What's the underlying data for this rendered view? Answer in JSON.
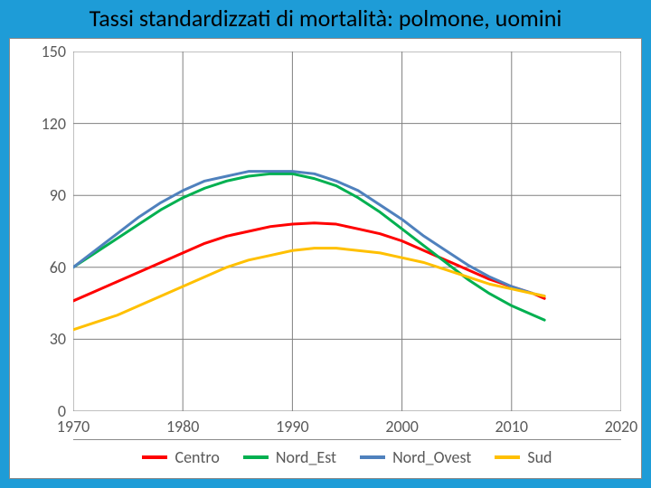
{
  "title": "Tassi standardizzati di mortalità: polmone, uomini",
  "chart": {
    "type": "line",
    "background_color": "#ffffff",
    "page_background_color": "#1e9cd7",
    "grid_color": "#808080",
    "axis_color": "#808080",
    "tick_label_color": "#595959",
    "tick_label_fontsize": 18,
    "title_fontsize": 26,
    "line_width": 3,
    "x": {
      "min": 1970,
      "max": 2020,
      "ticks": [
        1970,
        1980,
        1990,
        2000,
        2010,
        2020
      ]
    },
    "y": {
      "min": 0,
      "max": 150,
      "ticks": [
        0,
        30,
        60,
        90,
        120,
        150
      ]
    },
    "series": [
      {
        "name": "Centro",
        "color": "#ff0000",
        "points": [
          [
            1970,
            46
          ],
          [
            1972,
            50
          ],
          [
            1974,
            54
          ],
          [
            1976,
            58
          ],
          [
            1978,
            62
          ],
          [
            1980,
            66
          ],
          [
            1982,
            70
          ],
          [
            1984,
            73
          ],
          [
            1986,
            75
          ],
          [
            1988,
            77
          ],
          [
            1990,
            78
          ],
          [
            1992,
            78.5
          ],
          [
            1994,
            78
          ],
          [
            1996,
            76
          ],
          [
            1998,
            74
          ],
          [
            2000,
            71
          ],
          [
            2002,
            67
          ],
          [
            2004,
            63
          ],
          [
            2006,
            59
          ],
          [
            2008,
            55
          ],
          [
            2010,
            52
          ],
          [
            2012,
            49
          ],
          [
            2013,
            47
          ]
        ]
      },
      {
        "name": "Nord_Est",
        "color": "#00b050",
        "points": [
          [
            1970,
            60
          ],
          [
            1972,
            66
          ],
          [
            1974,
            72
          ],
          [
            1976,
            78
          ],
          [
            1978,
            84
          ],
          [
            1980,
            89
          ],
          [
            1982,
            93
          ],
          [
            1984,
            96
          ],
          [
            1986,
            98
          ],
          [
            1988,
            99
          ],
          [
            1990,
            99
          ],
          [
            1992,
            97
          ],
          [
            1994,
            94
          ],
          [
            1996,
            89
          ],
          [
            1998,
            83
          ],
          [
            2000,
            76
          ],
          [
            2002,
            69
          ],
          [
            2004,
            62
          ],
          [
            2006,
            55
          ],
          [
            2008,
            49
          ],
          [
            2010,
            44
          ],
          [
            2012,
            40
          ],
          [
            2013,
            38
          ]
        ]
      },
      {
        "name": "Nord_Ovest",
        "color": "#4f81bd",
        "points": [
          [
            1970,
            60
          ],
          [
            1972,
            67
          ],
          [
            1974,
            74
          ],
          [
            1976,
            81
          ],
          [
            1978,
            87
          ],
          [
            1980,
            92
          ],
          [
            1982,
            96
          ],
          [
            1984,
            98
          ],
          [
            1986,
            100
          ],
          [
            1988,
            100
          ],
          [
            1990,
            100
          ],
          [
            1992,
            99
          ],
          [
            1994,
            96
          ],
          [
            1996,
            92
          ],
          [
            1998,
            86
          ],
          [
            2000,
            80
          ],
          [
            2002,
            73
          ],
          [
            2004,
            67
          ],
          [
            2006,
            61
          ],
          [
            2008,
            56
          ],
          [
            2010,
            52
          ],
          [
            2012,
            49
          ],
          [
            2013,
            48
          ]
        ]
      },
      {
        "name": "Sud",
        "color": "#ffc000",
        "points": [
          [
            1970,
            34
          ],
          [
            1972,
            37
          ],
          [
            1974,
            40
          ],
          [
            1976,
            44
          ],
          [
            1978,
            48
          ],
          [
            1980,
            52
          ],
          [
            1982,
            56
          ],
          [
            1984,
            60
          ],
          [
            1986,
            63
          ],
          [
            1988,
            65
          ],
          [
            1990,
            67
          ],
          [
            1992,
            68
          ],
          [
            1994,
            68
          ],
          [
            1996,
            67
          ],
          [
            1998,
            66
          ],
          [
            2000,
            64
          ],
          [
            2002,
            62
          ],
          [
            2004,
            59
          ],
          [
            2006,
            56
          ],
          [
            2008,
            53
          ],
          [
            2010,
            51
          ],
          [
            2012,
            49
          ],
          [
            2013,
            48
          ]
        ]
      }
    ],
    "legend": {
      "position": "bottom",
      "items": [
        "Centro",
        "Nord_Est",
        "Nord_Ovest",
        "Sud"
      ]
    }
  }
}
